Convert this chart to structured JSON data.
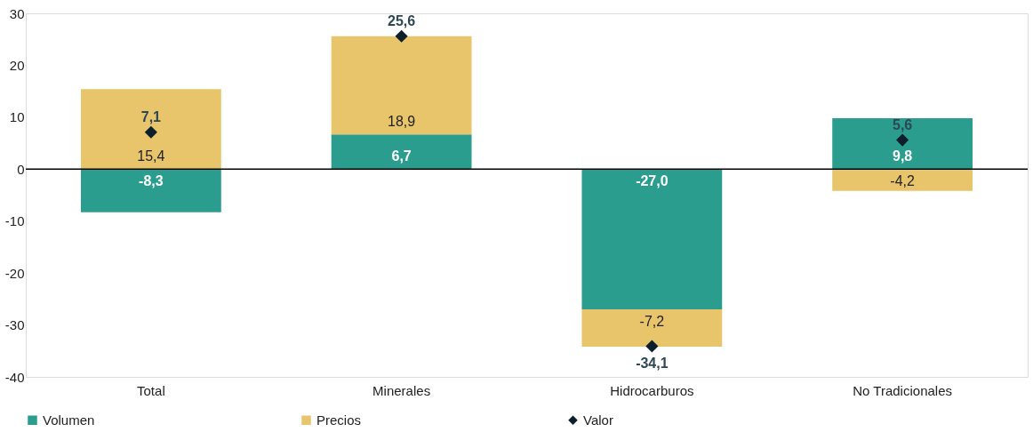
{
  "chart_data": {
    "type": "bar",
    "stacked": true,
    "categories": [
      "Total",
      "Minerales",
      "Hidrocarburos",
      "No Tradicionales"
    ],
    "series": [
      {
        "name": "Volumen",
        "color": "#2a9d8f",
        "values": [
          -8.3,
          6.7,
          -27.0,
          9.8
        ],
        "value_labels": [
          "-8,3",
          "6,7",
          "-27,0",
          "9,8"
        ]
      },
      {
        "name": "Precios",
        "color": "#e8c56b",
        "values": [
          15.4,
          18.9,
          -7.2,
          -4.2
        ],
        "value_labels": [
          "15,4",
          "18,9",
          "-7,2",
          "-4,2"
        ]
      },
      {
        "name": "Valor",
        "type": "scatter",
        "marker": "diamond",
        "color": "#0d1f2d",
        "values": [
          7.1,
          25.6,
          -34.1,
          5.6
        ],
        "value_labels": [
          "7,1",
          "25,6",
          "-34,1",
          "5,6"
        ]
      }
    ],
    "ylim": [
      -40,
      30
    ],
    "yticks": [
      -40,
      -30,
      -20,
      -10,
      0,
      10,
      20,
      30
    ],
    "grid": false,
    "legend": "bottom",
    "ref_lines": [
      {
        "axis": "y",
        "value": 0,
        "color": "#000000"
      }
    ]
  }
}
